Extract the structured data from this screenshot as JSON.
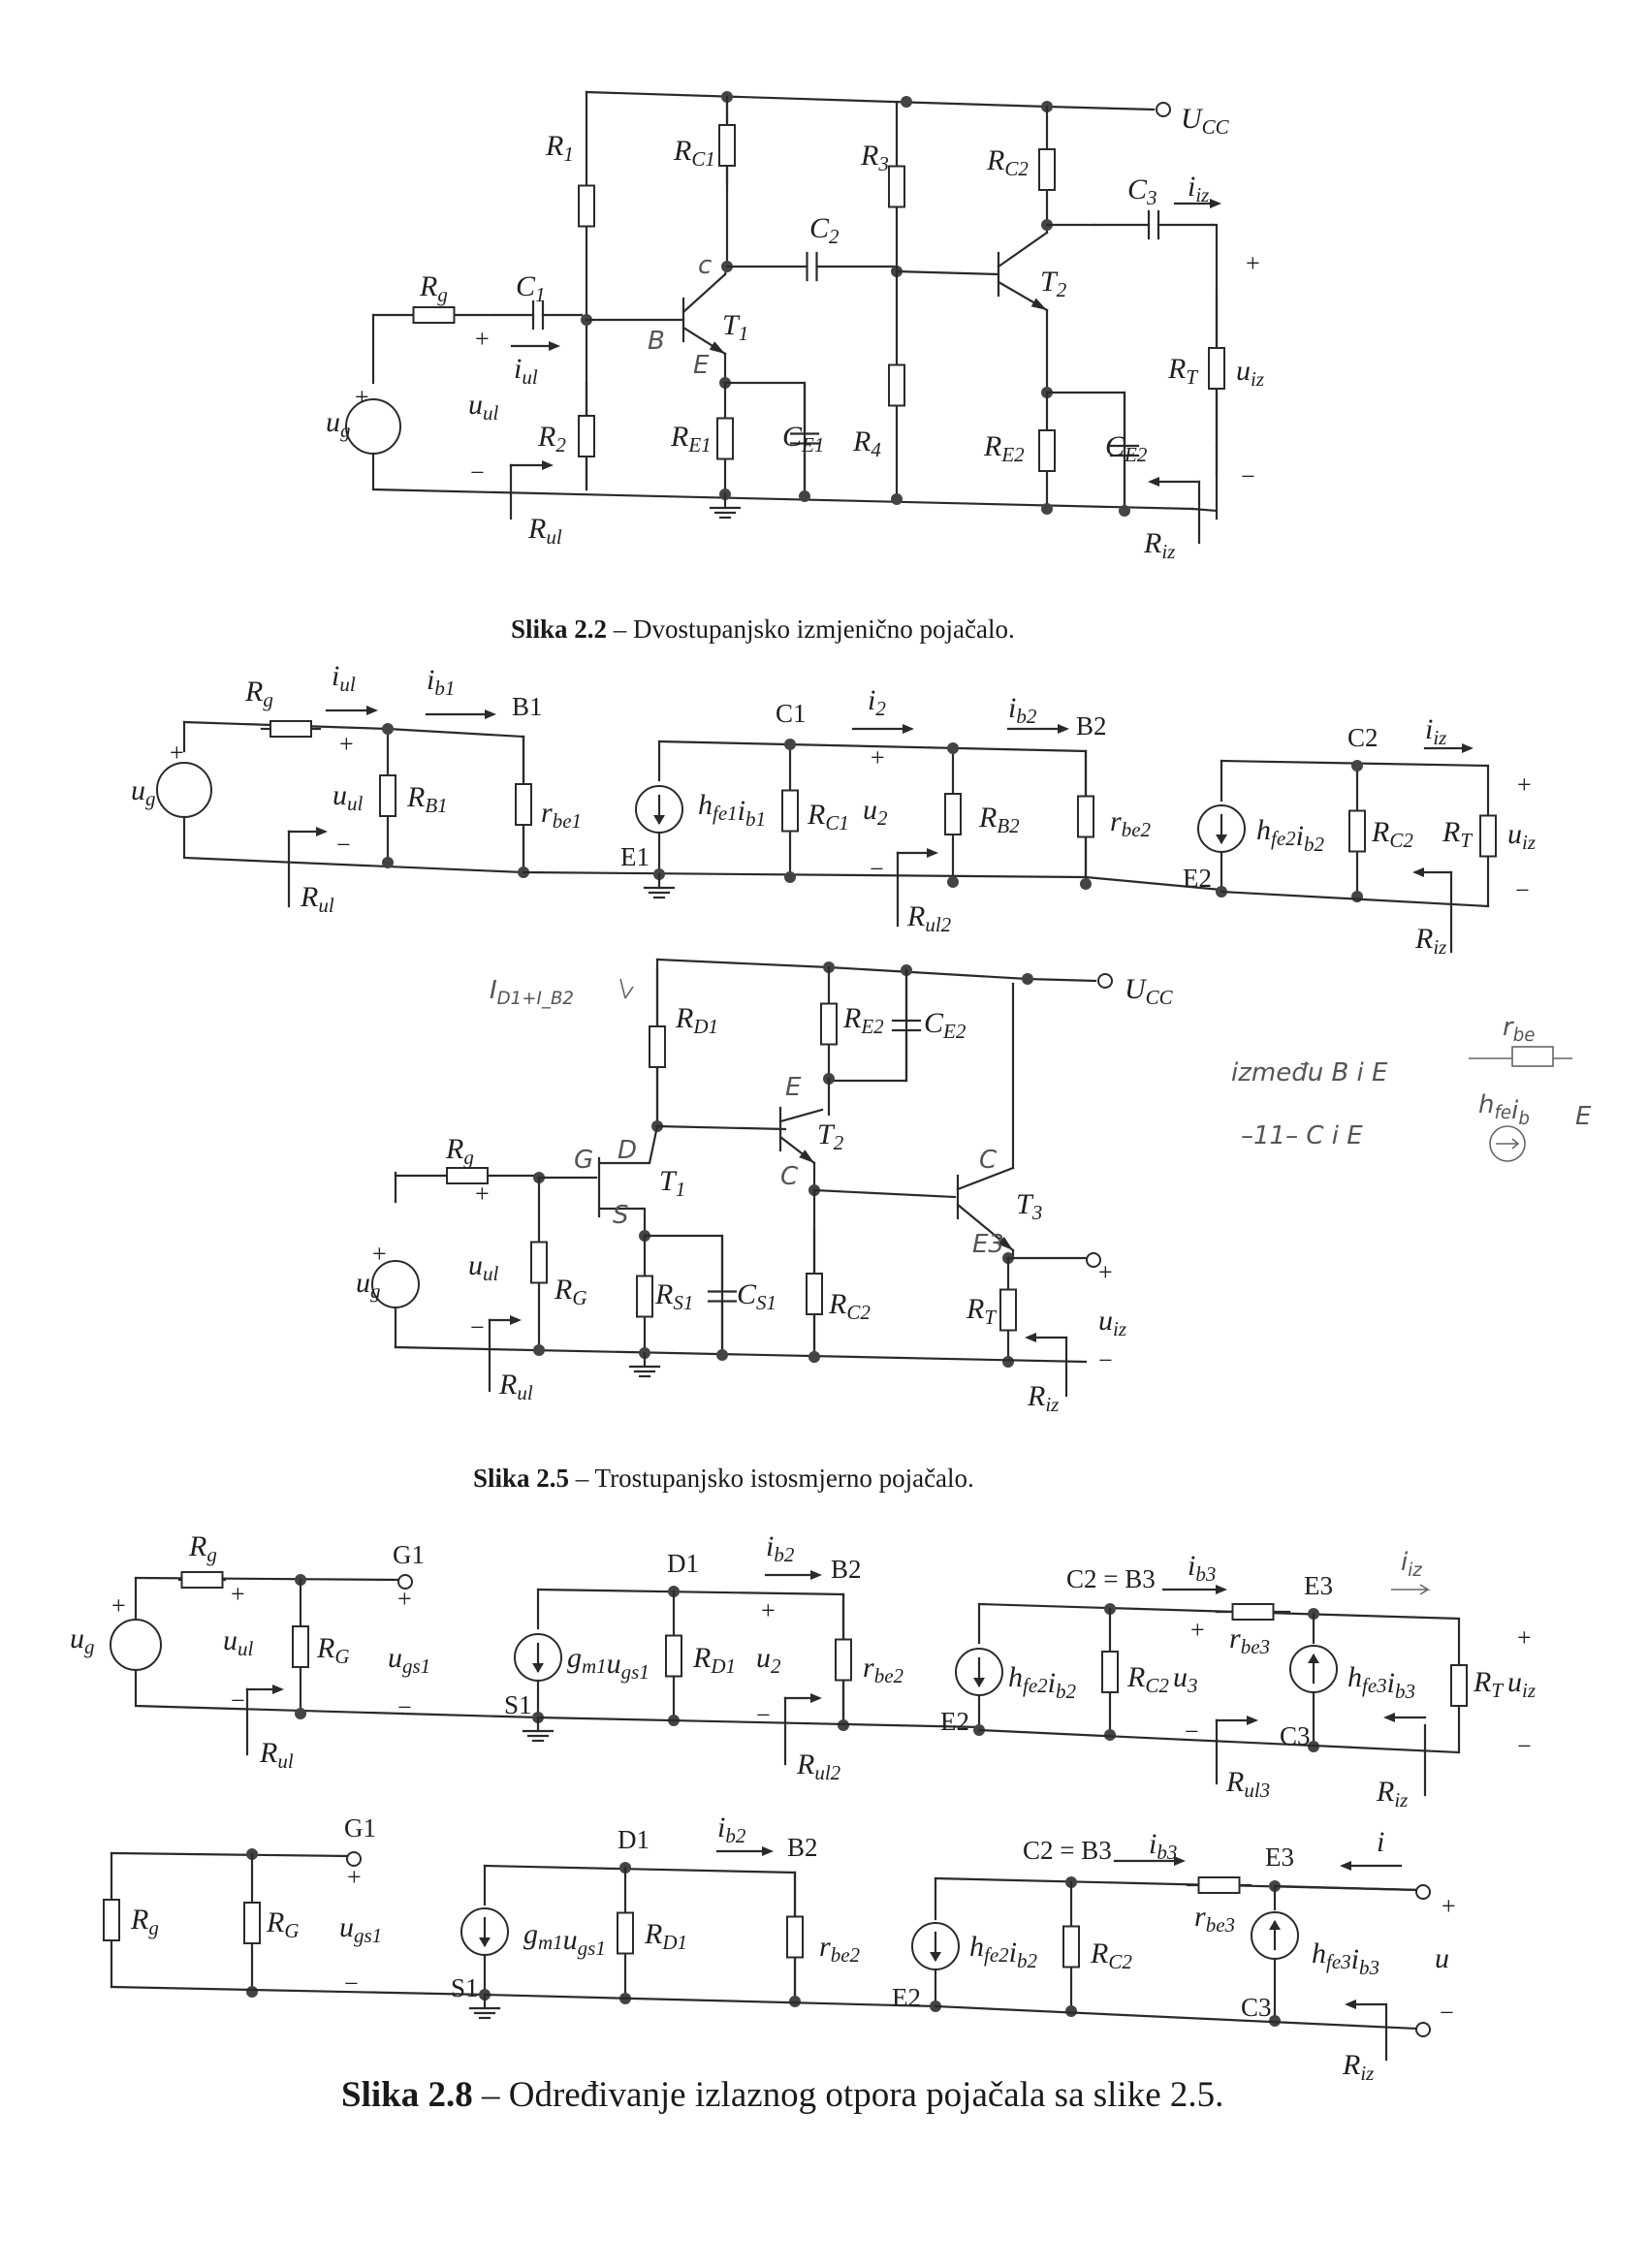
{
  "captions": [
    {
      "num": "Slika 2.2",
      "text": " – Dvostupanjsko izmjenično pojačalo."
    },
    {
      "num": "Slika 2.5",
      "text": " – Trostupanjsko istosmjerno pojačalo."
    },
    {
      "num": "Slika 2.8",
      "text": " – Određivanje izlaznog otpora pojačala sa slike 2.5."
    }
  ],
  "fig22": {
    "ucc": "U_CC",
    "rg": "R_g",
    "c1": "C_1",
    "iul": "i_ul",
    "ug": "u_g",
    "uul": "u_ul",
    "r1": "R_1",
    "r2": "R_2",
    "rc1": "R_C1",
    "t1": "T_1",
    "re1": "R_E1",
    "ce1": "C_E1",
    "c2": "C_2",
    "r3": "R_3",
    "r4": "R_4",
    "rc2": "R_C2",
    "t2": "T_2",
    "re2": "R_E2",
    "ce2": "C_E2",
    "c3": "C_3",
    "iiz": "i_iz",
    "rt": "R_T",
    "uiz": "u_iz",
    "rul": "R_ul",
    "riz": "R_iz",
    "hand_c": "c",
    "hand_b": "B",
    "hand_e": "E"
  },
  "fig22eq": {
    "rg": "R_g",
    "iul": "i_ul",
    "ib1": "i_b1",
    "b1": "B1",
    "ug": "u_g",
    "uul": "u_ul",
    "rb1": "R_B1",
    "rbe1": "r_be1",
    "rul": "R_ul",
    "c1": "C1",
    "i2": "i_2",
    "ib2": "i_b2",
    "b2": "B2",
    "src1": "h_fe1 i_b1",
    "e1": "E1",
    "rc1": "R_C1",
    "u2": "u_2",
    "rb2": "R_B2",
    "rbe2": "r_be2",
    "rul2": "R_ul2",
    "c2": "C2",
    "iiz": "i_iz",
    "src2": "h_fe2 i_b2",
    "e2": "E2",
    "rc2": "R_C2",
    "rt": "R_T",
    "uiz": "u_iz",
    "riz": "R_iz"
  },
  "fig25": {
    "ucc": "U_CC",
    "rd1": "R_D1",
    "re2": "R_E2",
    "ce2": "C_E2",
    "t2": "T_2",
    "rg": "R_g",
    "t1": "T_1",
    "ug": "u_g",
    "uul": "u_ul",
    "rG": "R_G",
    "rs1": "R_S1",
    "cs1": "C_S1",
    "rc2": "R_C2",
    "t3": "T_3",
    "rt": "R_T",
    "uiz": "u_iz",
    "rul": "R_ul",
    "riz": "R_iz",
    "hand_ids": "I_D1+I_B2",
    "hand_g": "G",
    "hand_d": "D",
    "hand_s": "S",
    "hand_e": "E",
    "hand_c": "C",
    "hand_c3": "C",
    "hand_e3": "E3"
  },
  "handnote": {
    "line1": "između B i E",
    "rbe": "r_be",
    "line2": "–11– C i E",
    "src": "h_fe i_b",
    "e": "E"
  },
  "fig28a": {
    "rg": "R_g",
    "ug": "u_g",
    "uul": "u_ul",
    "rG": "R_G",
    "g1": "G1",
    "ugs1": "u_gs1",
    "rul": "R_ul",
    "d1": "D1",
    "ib2": "i_b2",
    "b2": "B2",
    "src1": "g_m1 u_gs1",
    "s1": "S1",
    "rd1": "R_D1",
    "u2": "u_2",
    "rbe2": "r_be2",
    "rul2": "R_ul2",
    "c2b3": "C2 = B3",
    "ib3": "i_b3",
    "e3": "E3",
    "src2": "h_fe2 i_b2",
    "e2": "E2",
    "rc2": "R_C2",
    "u3": "u_3",
    "rbe3": "r_be3",
    "src3": "h_fe3 i_b3",
    "c3": "C3",
    "rt": "R_T",
    "uiz": "u_iz",
    "rul3": "R_ul3",
    "riz": "R_iz",
    "hand_iiz": "i_iz"
  },
  "fig28b": {
    "rg": "R_g",
    "rG": "R_G",
    "g1": "G1",
    "ugs1": "u_gs1",
    "d1": "D1",
    "ib2": "i_b2",
    "b2": "B2",
    "src1": "g_m1 u_gs1",
    "s1": "S1",
    "rd1": "R_D1",
    "rbe2": "r_be2",
    "c2b3": "C2 = B3",
    "ib3": "i_b3",
    "e3": "E3",
    "i": "i",
    "src2": "h_fe2 i_b2",
    "e2": "E2",
    "rc2": "R_C2",
    "rbe3": "r_be3",
    "src3": "h_fe3 i_b3",
    "c3": "C3",
    "u": "u",
    "riz": "R_iz"
  }
}
